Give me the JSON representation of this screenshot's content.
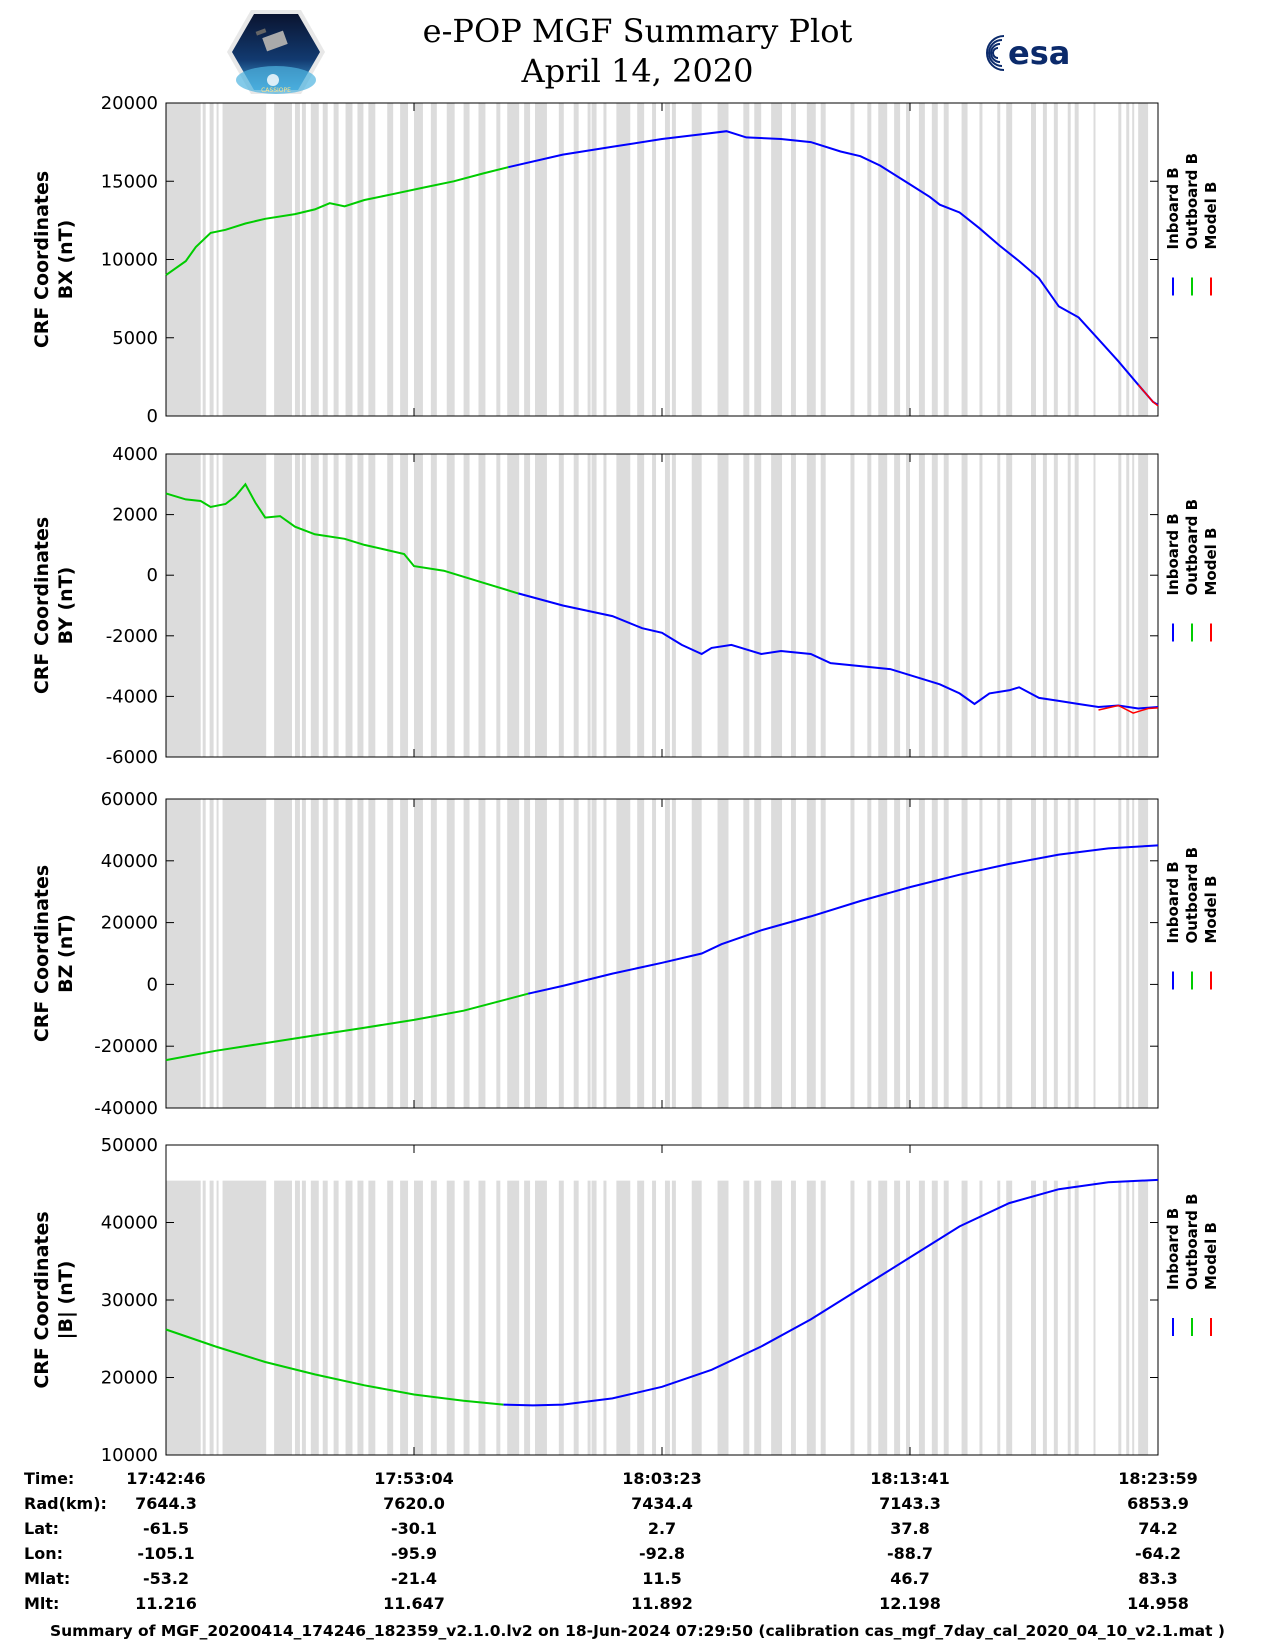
{
  "header": {
    "title": "e-POP MGF Summary Plot",
    "date": "April 14, 2020",
    "left_logo": "cassiope-mission-logo",
    "left_logo_text": "CASSIOPE",
    "right_logo": "esa-logo",
    "right_logo_text": "esa"
  },
  "legend": {
    "inboard_label": "Inboard B",
    "outboard_label": "Outboard B",
    "model_label": "Model B",
    "inboard_color": "#0000ff",
    "outboard_color": "#00cc00",
    "model_color": "#ff0000"
  },
  "colors": {
    "gap_shade": "#dcdcdc",
    "axis": "#000000"
  },
  "footer": {
    "caption": "Summary of MGF_20200414_174246_182359_v2.1.0.lv2 on 18-Jun-2024 07:29:50 (calibration cas_mgf_7day_cal_2020_04_10_v2.1.mat )"
  },
  "ephemeris": {
    "row_labels": [
      "Time:",
      "Rad(km):",
      "Lat:",
      "Lon:",
      "Mlat:",
      "Mlt:"
    ],
    "columns": [
      [
        "17:42:46",
        "7644.3",
        "-61.5",
        "-105.1",
        "-53.2",
        "11.216"
      ],
      [
        "17:53:04",
        "7620.0",
        "-30.1",
        "-95.9",
        "-21.4",
        "11.647"
      ],
      [
        "18:03:23",
        "7434.4",
        "2.7",
        "-92.8",
        "11.5",
        "11.892"
      ],
      [
        "18:13:41",
        "7143.3",
        "37.8",
        "-88.7",
        "46.7",
        "12.198"
      ],
      [
        "18:23:59",
        "6853.9",
        "74.2",
        "-64.2",
        "83.3",
        "14.958"
      ]
    ]
  },
  "chart_data": [
    {
      "type": "line",
      "ylabel_line1": "CRF Coordinates",
      "ylabel_line2": "BX (nT)",
      "ylim": [
        0,
        20000
      ],
      "yticks": [
        0,
        5000,
        10000,
        15000,
        20000
      ],
      "xlim": [
        0,
        1
      ],
      "shade_top": 20000,
      "green_end": 0.345,
      "series": [
        {
          "name": "Inboard B",
          "points": [
            [
              0,
              9000
            ],
            [
              0.02,
              9900
            ],
            [
              0.03,
              10800
            ],
            [
              0.045,
              11700
            ],
            [
              0.06,
              11900
            ],
            [
              0.08,
              12300
            ],
            [
              0.1,
              12600
            ],
            [
              0.13,
              12900
            ],
            [
              0.15,
              13200
            ],
            [
              0.165,
              13600
            ],
            [
              0.18,
              13400
            ],
            [
              0.2,
              13800
            ],
            [
              0.23,
              14200
            ],
            [
              0.26,
              14600
            ],
            [
              0.29,
              15000
            ],
            [
              0.32,
              15500
            ],
            [
              0.345,
              15900
            ],
            [
              0.4,
              16700
            ],
            [
              0.45,
              17200
            ],
            [
              0.5,
              17700
            ],
            [
              0.54,
              18000
            ],
            [
              0.565,
              18200
            ],
            [
              0.585,
              17800
            ],
            [
              0.62,
              17700
            ],
            [
              0.65,
              17500
            ],
            [
              0.68,
              16900
            ],
            [
              0.7,
              16600
            ],
            [
              0.72,
              16000
            ],
            [
              0.75,
              14800
            ],
            [
              0.77,
              14000
            ],
            [
              0.78,
              13500
            ],
            [
              0.8,
              13000
            ],
            [
              0.82,
              12000
            ],
            [
              0.84,
              10900
            ],
            [
              0.86,
              9900
            ],
            [
              0.88,
              8800
            ],
            [
              0.9,
              7000
            ],
            [
              0.92,
              6300
            ],
            [
              0.94,
              4900
            ],
            [
              0.96,
              3500
            ],
            [
              0.98,
              2000
            ],
            [
              0.995,
              900
            ],
            [
              1,
              700
            ]
          ]
        },
        {
          "name": "Model B",
          "points": [
            [
              0.98,
              2000
            ],
            [
              0.995,
              900
            ],
            [
              1,
              650
            ]
          ]
        }
      ]
    },
    {
      "type": "line",
      "ylabel_line1": "CRF Coordinates",
      "ylabel_line2": "BY (nT)",
      "ylim": [
        -6000,
        4000
      ],
      "yticks": [
        -6000,
        -4000,
        -2000,
        0,
        2000,
        4000
      ],
      "xlim": [
        0,
        1
      ],
      "shade_top": 4000,
      "green_end": 0.355,
      "series": [
        {
          "name": "Inboard B",
          "points": [
            [
              0,
              2700
            ],
            [
              0.02,
              2500
            ],
            [
              0.035,
              2450
            ],
            [
              0.045,
              2250
            ],
            [
              0.06,
              2350
            ],
            [
              0.07,
              2600
            ],
            [
              0.08,
              3000
            ],
            [
              0.09,
              2400
            ],
            [
              0.1,
              1900
            ],
            [
              0.115,
              1950
            ],
            [
              0.13,
              1600
            ],
            [
              0.15,
              1350
            ],
            [
              0.18,
              1200
            ],
            [
              0.2,
              1000
            ],
            [
              0.22,
              850
            ],
            [
              0.24,
              700
            ],
            [
              0.25,
              300
            ],
            [
              0.28,
              150
            ],
            [
              0.32,
              -250
            ],
            [
              0.355,
              -600
            ],
            [
              0.4,
              -1000
            ],
            [
              0.45,
              -1350
            ],
            [
              0.48,
              -1750
            ],
            [
              0.5,
              -1900
            ],
            [
              0.52,
              -2300
            ],
            [
              0.54,
              -2600
            ],
            [
              0.55,
              -2400
            ],
            [
              0.57,
              -2300
            ],
            [
              0.58,
              -2400
            ],
            [
              0.6,
              -2600
            ],
            [
              0.62,
              -2500
            ],
            [
              0.65,
              -2600
            ],
            [
              0.67,
              -2900
            ],
            [
              0.7,
              -3000
            ],
            [
              0.73,
              -3100
            ],
            [
              0.76,
              -3400
            ],
            [
              0.78,
              -3600
            ],
            [
              0.8,
              -3900
            ],
            [
              0.815,
              -4250
            ],
            [
              0.83,
              -3900
            ],
            [
              0.85,
              -3800
            ],
            [
              0.86,
              -3700
            ],
            [
              0.88,
              -4050
            ],
            [
              0.9,
              -4150
            ],
            [
              0.92,
              -4250
            ],
            [
              0.94,
              -4350
            ],
            [
              0.96,
              -4300
            ],
            [
              0.98,
              -4400
            ],
            [
              1,
              -4350
            ]
          ]
        },
        {
          "name": "Model B",
          "points": [
            [
              0.94,
              -4450
            ],
            [
              0.96,
              -4300
            ],
            [
              0.975,
              -4550
            ],
            [
              0.99,
              -4400
            ],
            [
              1,
              -4380
            ]
          ]
        }
      ]
    },
    {
      "type": "line",
      "ylabel_line1": "CRF Coordinates",
      "ylabel_line2": "BZ (nT)",
      "ylim": [
        -40000,
        60000
      ],
      "yticks": [
        -40000,
        -20000,
        0,
        20000,
        40000,
        60000
      ],
      "xlim": [
        0,
        1
      ],
      "shade_top": 60000,
      "green_end": 0.365,
      "series": [
        {
          "name": "Inboard B",
          "points": [
            [
              0,
              -24500
            ],
            [
              0.05,
              -21500
            ],
            [
              0.1,
              -19000
            ],
            [
              0.15,
              -16500
            ],
            [
              0.2,
              -14000
            ],
            [
              0.25,
              -11500
            ],
            [
              0.3,
              -8500
            ],
            [
              0.365,
              -3000
            ],
            [
              0.4,
              -500
            ],
            [
              0.45,
              3500
            ],
            [
              0.5,
              7000
            ],
            [
              0.54,
              10000
            ],
            [
              0.56,
              13000
            ],
            [
              0.6,
              17500
            ],
            [
              0.65,
              22000
            ],
            [
              0.7,
              27000
            ],
            [
              0.75,
              31500
            ],
            [
              0.8,
              35500
            ],
            [
              0.85,
              39000
            ],
            [
              0.9,
              42000
            ],
            [
              0.95,
              44000
            ],
            [
              1,
              45000
            ]
          ]
        }
      ]
    },
    {
      "type": "line",
      "ylabel_line1": "CRF Coordinates",
      "ylabel_line2": "|B| (nT)",
      "ylim": [
        10000,
        50000
      ],
      "yticks": [
        10000,
        20000,
        30000,
        40000,
        50000
      ],
      "xlim": [
        0,
        1
      ],
      "shade_top": 45400,
      "green_end": 0.34,
      "series": [
        {
          "name": "Inboard B",
          "points": [
            [
              0,
              26200
            ],
            [
              0.05,
              24000
            ],
            [
              0.1,
              22000
            ],
            [
              0.15,
              20400
            ],
            [
              0.2,
              19000
            ],
            [
              0.25,
              17800
            ],
            [
              0.3,
              17000
            ],
            [
              0.34,
              16500
            ],
            [
              0.37,
              16400
            ],
            [
              0.4,
              16500
            ],
            [
              0.45,
              17300
            ],
            [
              0.5,
              18800
            ],
            [
              0.55,
              21000
            ],
            [
              0.6,
              24000
            ],
            [
              0.65,
              27500
            ],
            [
              0.7,
              31500
            ],
            [
              0.75,
              35500
            ],
            [
              0.8,
              39500
            ],
            [
              0.85,
              42500
            ],
            [
              0.9,
              44300
            ],
            [
              0.95,
              45200
            ],
            [
              1,
              45500
            ]
          ]
        }
      ]
    }
  ]
}
